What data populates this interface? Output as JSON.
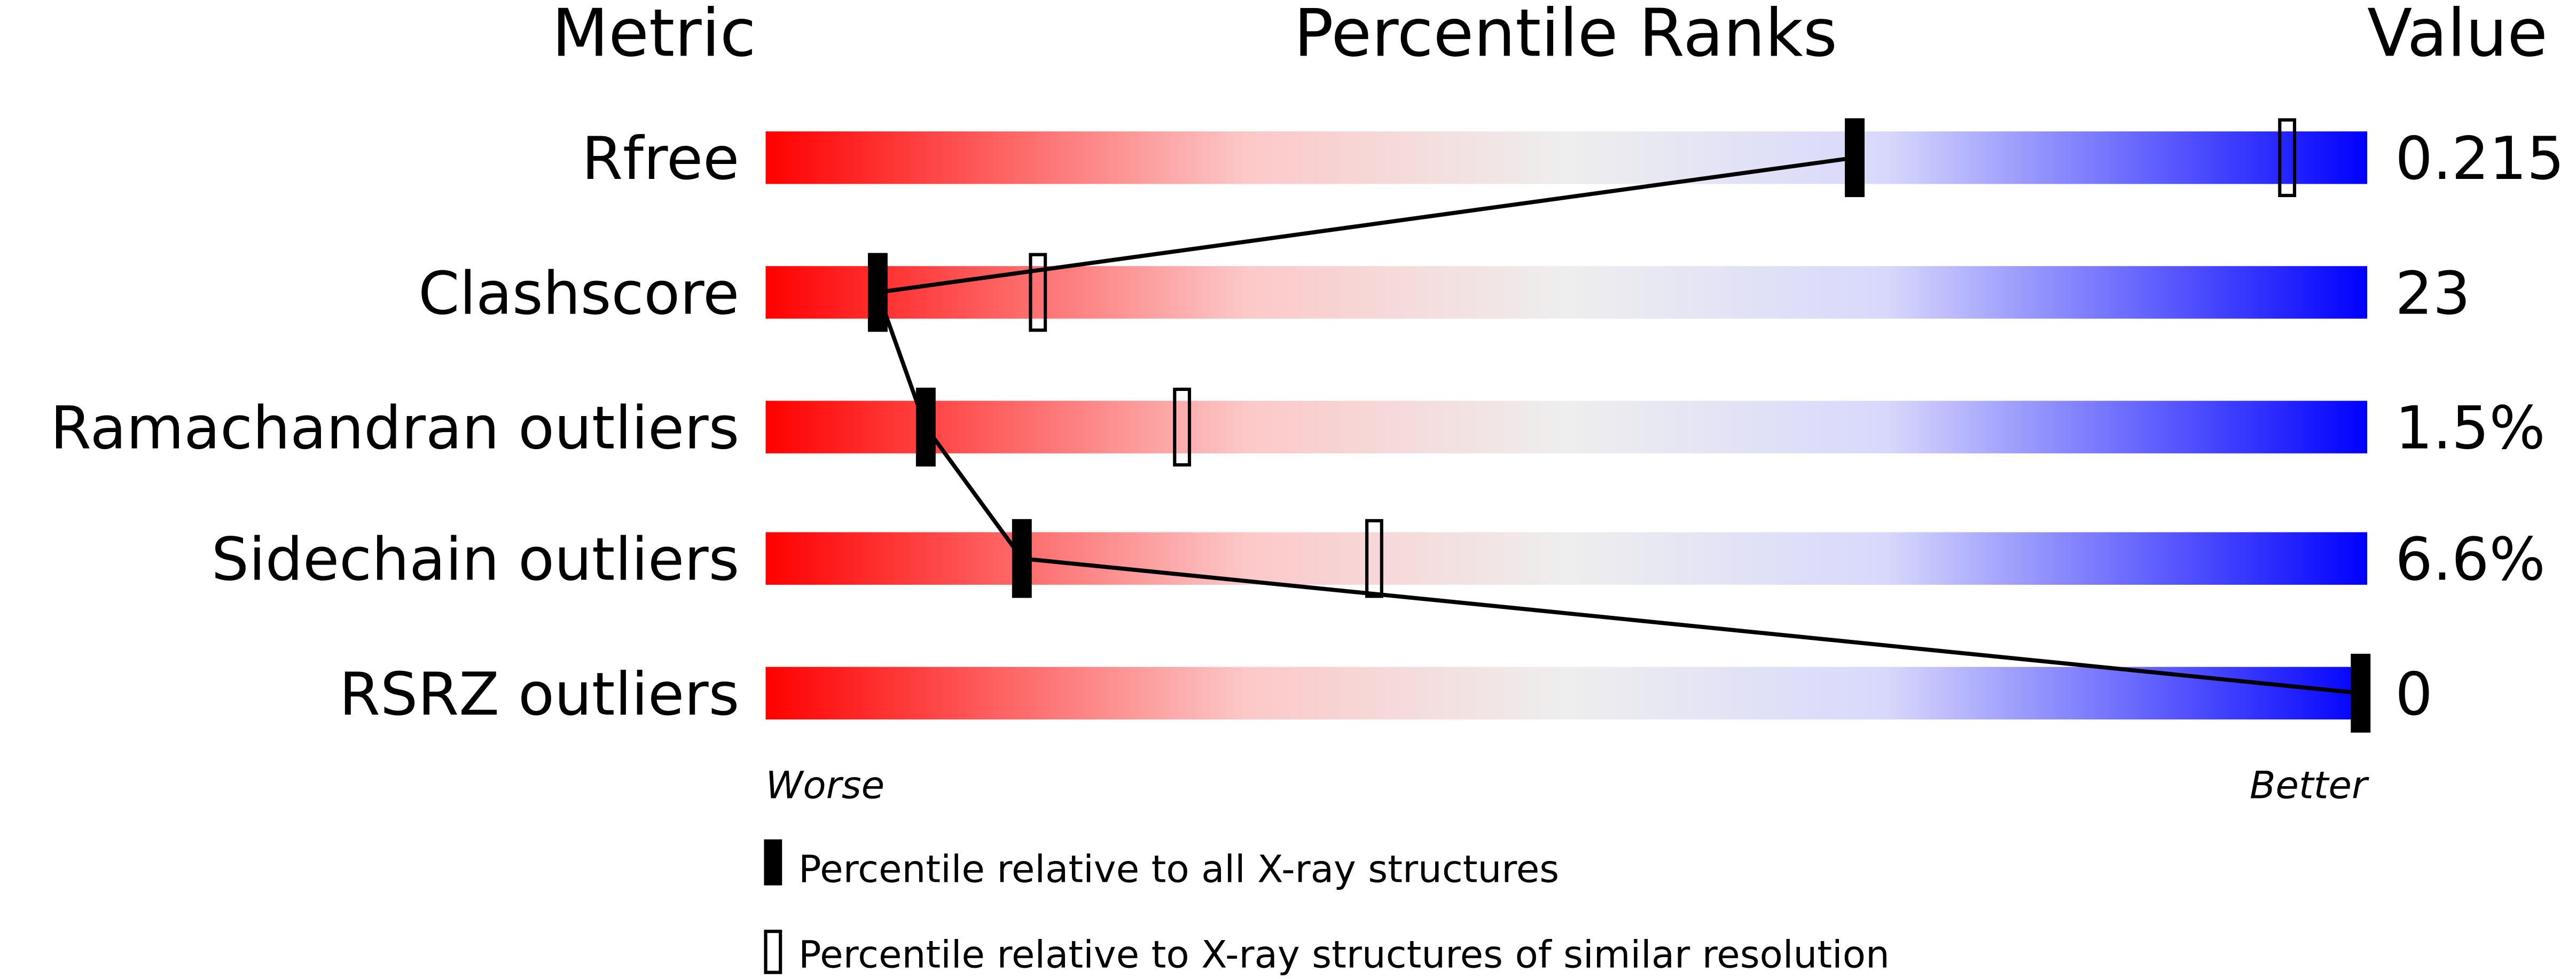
{
  "chart_data": {
    "type": "percentile-slider",
    "headers": {
      "metric": "Metric",
      "ranks": "Percentile Ranks",
      "value": "Value"
    },
    "axis": {
      "worse": "Worse",
      "better": "Better",
      "range": [
        0,
        100
      ]
    },
    "rows": [
      {
        "metric": "Rfree",
        "value": "0.215",
        "percentile_all": 68,
        "percentile_similar": 95
      },
      {
        "metric": "Clashscore",
        "value": "23",
        "percentile_all": 7,
        "percentile_similar": 17
      },
      {
        "metric": "Ramachandran outliers",
        "value": "1.5%",
        "percentile_all": 10,
        "percentile_similar": 26
      },
      {
        "metric": "Sidechain outliers",
        "value": "6.6%",
        "percentile_all": 16,
        "percentile_similar": 38
      },
      {
        "metric": "RSRZ outliers",
        "value": "0",
        "percentile_all": 100,
        "percentile_similar": null
      }
    ],
    "legend": {
      "all": "Percentile relative to all X-ray structures",
      "similar": "Percentile relative to X-ray structures of similar resolution"
    },
    "gradient_colors": [
      "#ff0000",
      "#fcdede",
      "#eeeeee",
      "#dcdcfc",
      "#0000ff"
    ]
  }
}
